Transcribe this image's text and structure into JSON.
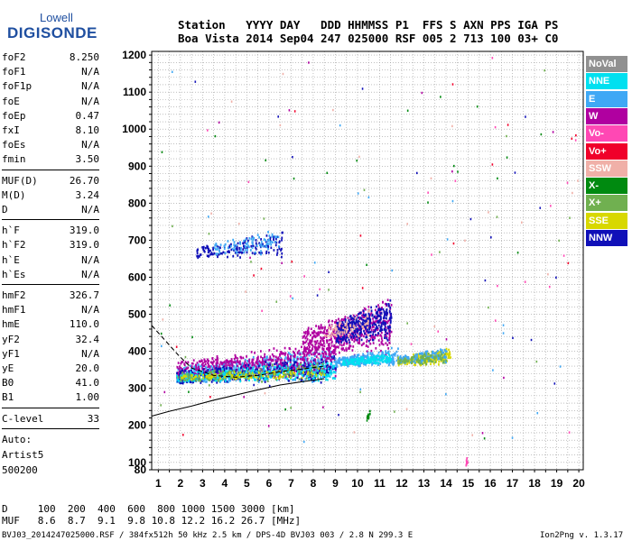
{
  "logo": {
    "line1": "Lowell",
    "line2": "DIGISONDE"
  },
  "header": {
    "row1": "Station   YYYY DAY   DDD HHMMSS P1  FFS S AXN PPS IGA PS",
    "row2": "Boa Vista 2014 Sep04 247 025000 RSF 005 2 713 100 03+ C0"
  },
  "params": {
    "group1": [
      {
        "k": "foF2",
        "v": "8.250"
      },
      {
        "k": "foF1",
        "v": "N/A"
      },
      {
        "k": "foF1p",
        "v": "N/A"
      },
      {
        "k": "foE",
        "v": "N/A"
      },
      {
        "k": "foEp",
        "v": "0.47"
      },
      {
        "k": "fxI",
        "v": "8.10"
      },
      {
        "k": "foEs",
        "v": "N/A"
      },
      {
        "k": "fmin",
        "v": "3.50"
      }
    ],
    "group2": [
      {
        "k": "MUF(D)",
        "v": "26.70"
      },
      {
        "k": "M(D)",
        "v": "3.24"
      },
      {
        "k": "D",
        "v": "N/A"
      }
    ],
    "group3": [
      {
        "k": "h`F",
        "v": "319.0"
      },
      {
        "k": "h`F2",
        "v": "319.0"
      },
      {
        "k": "h`E",
        "v": "N/A"
      },
      {
        "k": "h`Es",
        "v": "N/A"
      }
    ],
    "group4": [
      {
        "k": "hmF2",
        "v": "326.7"
      },
      {
        "k": "hmF1",
        "v": "N/A"
      },
      {
        "k": "hmE",
        "v": "110.0"
      },
      {
        "k": "yF2",
        "v": "32.4"
      },
      {
        "k": "yF1",
        "v": "N/A"
      },
      {
        "k": "yE",
        "v": "20.0"
      },
      {
        "k": "B0",
        "v": "41.0"
      },
      {
        "k": "B1",
        "v": "1.00"
      }
    ],
    "group5": [
      {
        "k": "C-level",
        "v": "33"
      }
    ]
  },
  "auto": {
    "line1": "Auto:",
    "line2": "Artist5",
    "line3": "500200"
  },
  "footer": {
    "d_row": "D     100  200  400  600  800 1000 1500 3000 [km]",
    "muf_row": "MUF   8.6  8.7  9.1  9.8 10.8 12.2 16.2 26.7 [MHz]",
    "file_line": "BVJ03_2014247025000.RSF / 384fx512h 50 kHz 2.5 km / DPS-4D BVJ03 003 / 2.8 N 299.3 E",
    "version": "Ion2Png v. 1.3.17"
  },
  "legend": [
    {
      "label": "NoVal",
      "color": "#909090"
    },
    {
      "label": "NNE",
      "color": "#00e0f0"
    },
    {
      "label": "E",
      "color": "#3fa8f5"
    },
    {
      "label": "W",
      "color": "#b000a0"
    },
    {
      "label": "Vo-",
      "color": "#ff48b4"
    },
    {
      "label": "Vo+",
      "color": "#f0002a"
    },
    {
      "label": "SSW",
      "color": "#f0b0a8"
    },
    {
      "label": "X-",
      "color": "#008a10"
    },
    {
      "label": "X+",
      "color": "#70b050"
    },
    {
      "label": "SSE",
      "color": "#d8d800"
    },
    {
      "label": "NNW",
      "color": "#1010b8"
    }
  ],
  "chart_data": {
    "type": "scatter",
    "title": "",
    "xlabel": "",
    "ylabel": "",
    "xlim": [
      0.7,
      20.2
    ],
    "ylim": [
      80,
      1210
    ],
    "x_ticks": [
      1,
      2,
      3,
      4,
      5,
      6,
      7,
      8,
      9,
      10,
      11,
      12,
      13,
      14,
      15,
      16,
      17,
      18,
      19,
      20
    ],
    "y_ticks": [
      80,
      100,
      200,
      300,
      400,
      500,
      600,
      700,
      800,
      900,
      1000,
      1100,
      1200
    ],
    "grid": true,
    "clusters": [
      {
        "series": "E",
        "x": [
          1.8,
          9.0
        ],
        "y": [
          300,
          420
        ],
        "count": 700
      },
      {
        "series": "W",
        "x": [
          1.8,
          9.0
        ],
        "y": [
          310,
          440
        ],
        "count": 550
      },
      {
        "series": "NNW",
        "x": [
          1.8,
          9.0
        ],
        "y": [
          300,
          400
        ],
        "count": 350
      },
      {
        "series": "NNE",
        "x": [
          1.8,
          9.0
        ],
        "y": [
          310,
          380
        ],
        "count": 300
      },
      {
        "series": "X+",
        "x": [
          1.8,
          8.5
        ],
        "y": [
          310,
          380
        ],
        "count": 150
      },
      {
        "series": "SSE",
        "x": [
          2.0,
          8.5
        ],
        "y": [
          320,
          360
        ],
        "count": 100
      },
      {
        "series": "W",
        "x": [
          7.5,
          11.5
        ],
        "y": [
          360,
          560
        ],
        "count": 500
      },
      {
        "series": "NNW",
        "x": [
          9.0,
          11.5
        ],
        "y": [
          400,
          560
        ],
        "count": 350
      },
      {
        "series": "E",
        "x": [
          9.0,
          11.8
        ],
        "y": [
          350,
          420
        ],
        "count": 250
      },
      {
        "series": "NNE",
        "x": [
          9.3,
          11.5
        ],
        "y": [
          360,
          400
        ],
        "count": 150
      },
      {
        "series": "SSW",
        "x": [
          8.5,
          10.5
        ],
        "y": [
          420,
          520
        ],
        "count": 70
      },
      {
        "series": "SSE",
        "x": [
          11.8,
          14.2
        ],
        "y": [
          355,
          420
        ],
        "count": 200
      },
      {
        "series": "E",
        "x": [
          11.8,
          14.0
        ],
        "y": [
          360,
          420
        ],
        "count": 120
      },
      {
        "series": "X+",
        "x": [
          11.8,
          14.0
        ],
        "y": [
          360,
          410
        ],
        "count": 80
      },
      {
        "series": "NNW",
        "x": [
          2.7,
          6.6
        ],
        "y": [
          640,
          730
        ],
        "count": 160
      },
      {
        "series": "E",
        "x": [
          3.5,
          6.5
        ],
        "y": [
          650,
          740
        ],
        "count": 90
      },
      {
        "series": "X-",
        "x": [
          10.4,
          10.55
        ],
        "y": [
          210,
          250
        ],
        "count": 10
      },
      {
        "series": "Vo-",
        "x": [
          14.85,
          14.95
        ],
        "y": [
          80,
          130
        ],
        "count": 8
      }
    ],
    "lines": [
      {
        "name": "",
        "style": "solid",
        "x": [
          0.7,
          1.5,
          2.5,
          3.5,
          4.5,
          5.5,
          6.5,
          7.5,
          8.5
        ],
        "y": [
          225,
          238,
          252,
          268,
          282,
          296,
          309,
          318,
          326
        ]
      },
      {
        "name": "",
        "style": "dashed",
        "x": [
          0.7,
          1.3,
          1.9,
          2.5,
          3.5,
          4.5,
          5.5,
          6.5,
          7.5,
          8.5
        ],
        "y": [
          470,
          430,
          390,
          355,
          335,
          330,
          335,
          345,
          352,
          360
        ]
      }
    ]
  }
}
